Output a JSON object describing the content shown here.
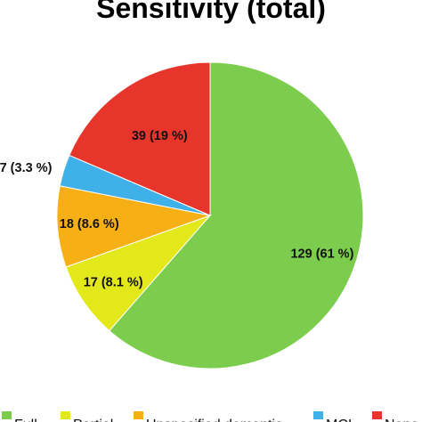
{
  "chart_data": {
    "type": "pie",
    "title": "Sensitivity (total)",
    "start_angle_deg": 0,
    "direction": "clockwise",
    "slices": [
      {
        "name": "Full",
        "value": 129,
        "label": "129  (61 %)",
        "color": "#7ccd4e"
      },
      {
        "name": "Partial",
        "value": 17,
        "label": "17 (8.1 %)",
        "color": "#e3e81b"
      },
      {
        "name": "Unspecified dementia",
        "value": 18,
        "label": "18 (8.6 %)",
        "color": "#f6b015"
      },
      {
        "name": "MCI",
        "value": 7,
        "label": "7 (3.3 %)",
        "color": "#3fb0e8"
      },
      {
        "name": "None",
        "value": 39,
        "label": "39  (19 %)",
        "color": "#e8352c"
      }
    ],
    "legend": {
      "placement": "bottom",
      "items": [
        "Full",
        "Partial",
        "Unspecified dementia",
        "MCI",
        "None"
      ]
    }
  }
}
